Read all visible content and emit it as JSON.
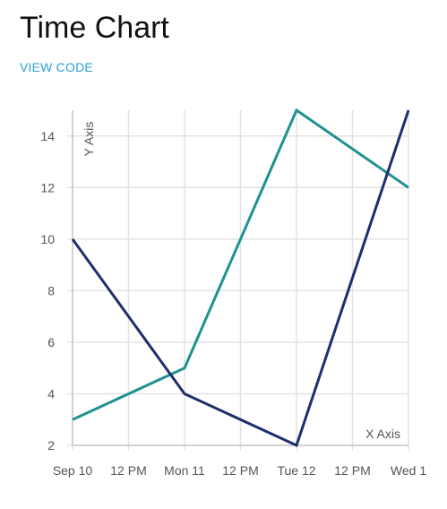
{
  "page": {
    "title": "Time Chart",
    "view_code_label": "VIEW CODE",
    "link_color": "#2aa0d6"
  },
  "chart_data": {
    "type": "line",
    "title": "",
    "xlabel": "X Axis",
    "ylabel": "Y Axis",
    "x_ticks": [
      "Sep 10",
      "12 PM",
      "Mon 11",
      "12 PM",
      "Tue 12",
      "12 PM",
      "Wed 1"
    ],
    "x_tick_positions_days": [
      0,
      0.5,
      1,
      1.5,
      2,
      2.5,
      3
    ],
    "xlim_days": [
      0,
      3
    ],
    "y_ticks": [
      2,
      4,
      6,
      8,
      10,
      12,
      14
    ],
    "ylim": [
      2,
      15
    ],
    "grid": true,
    "series": [
      {
        "color": "#1f9190",
        "x": [
          "Sep 10",
          "Mon 11",
          "Tue 12",
          "Wed 1"
        ],
        "x_days": [
          0,
          1,
          2,
          3
        ],
        "values": [
          3,
          5,
          15,
          12
        ]
      },
      {
        "color": "#1f2d6b",
        "x": [
          "Sep 10",
          "Mon 11",
          "Tue 12",
          "Wed 1"
        ],
        "x_days": [
          0,
          1,
          2,
          3
        ],
        "values": [
          10,
          4,
          2,
          15
        ]
      }
    ]
  }
}
